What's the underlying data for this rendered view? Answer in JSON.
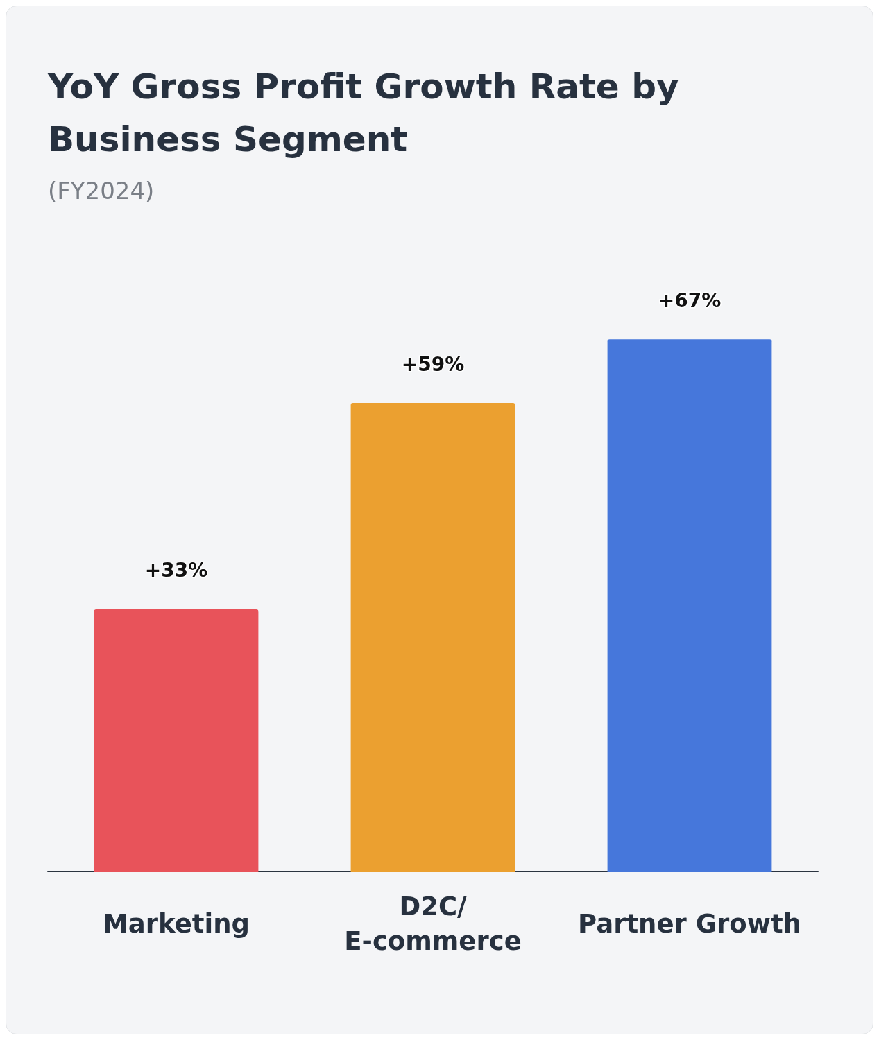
{
  "chart_data": {
    "type": "bar",
    "title": "YoY Gross Profit Growth Rate by Business Segment",
    "subtitle": "(FY2024)",
    "categories": [
      "Marketing",
      "D2C/\nE-commerce",
      "Partner Growth"
    ],
    "values": [
      33,
      59,
      67
    ],
    "colors": [
      "#e8535a",
      "#eba030",
      "#4677db"
    ],
    "value_labels": [
      "+33%",
      "+59%",
      "+67%"
    ],
    "tick_labels": "x"
  }
}
